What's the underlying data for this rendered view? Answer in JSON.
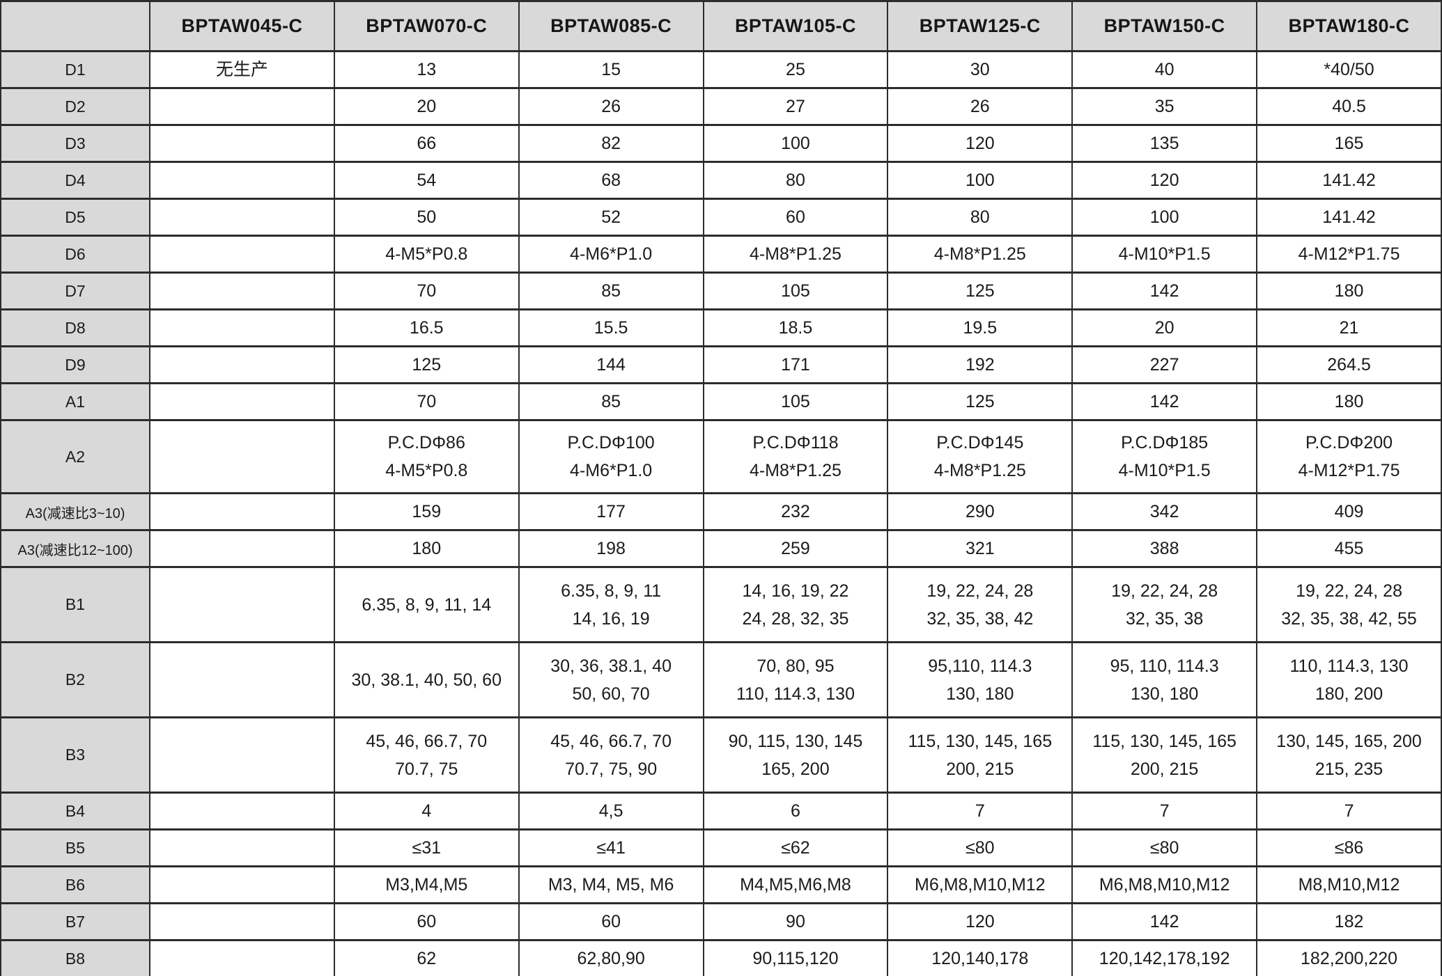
{
  "colors": {
    "header_bg": "#d9d9d9",
    "label_bg": "#d9d9d9",
    "border": "#2c2c2c",
    "text": "#1b1b1b"
  },
  "table": {
    "columns": [
      "",
      "BPTAW045-C",
      "BPTAW070-C",
      "BPTAW085-C",
      "BPTAW105-C",
      "BPTAW125-C",
      "BPTAW150-C",
      "BPTAW180-C"
    ],
    "rows": [
      {
        "label": "D1",
        "cells": [
          "无生产",
          "13",
          "15",
          "25",
          "30",
          "40",
          "*40/50"
        ]
      },
      {
        "label": "D2",
        "cells": [
          "",
          "20",
          "26",
          "27",
          "26",
          "35",
          "40.5"
        ]
      },
      {
        "label": "D3",
        "cells": [
          "",
          "66",
          "82",
          "100",
          "120",
          "135",
          "165"
        ]
      },
      {
        "label": "D4",
        "cells": [
          "",
          "54",
          "68",
          "80",
          "100",
          "120",
          "141.42"
        ]
      },
      {
        "label": "D5",
        "cells": [
          "",
          "50",
          "52",
          "60",
          "80",
          "100",
          "141.42"
        ]
      },
      {
        "label": "D6",
        "cells": [
          "",
          "4-M5*P0.8",
          "4-M6*P1.0",
          "4-M8*P1.25",
          "4-M8*P1.25",
          "4-M10*P1.5",
          "4-M12*P1.75"
        ]
      },
      {
        "label": "D7",
        "cells": [
          "",
          "70",
          "85",
          "105",
          "125",
          "142",
          "180"
        ]
      },
      {
        "label": "D8",
        "cells": [
          "",
          "16.5",
          "15.5",
          "18.5",
          "19.5",
          "20",
          "21"
        ]
      },
      {
        "label": "D9",
        "cells": [
          "",
          "125",
          "144",
          "171",
          "192",
          "227",
          "264.5"
        ]
      },
      {
        "label": "A1",
        "cells": [
          "",
          "70",
          "85",
          "105",
          "125",
          "142",
          "180"
        ]
      },
      {
        "label": "A2",
        "cells": [
          "",
          "P.C.DΦ86\n4-M5*P0.8",
          "P.C.DΦ100\n4-M6*P1.0",
          "P.C.DΦ118\n4-M8*P1.25",
          "P.C.DΦ145\n4-M8*P1.25",
          "P.C.DΦ185\n4-M10*P1.5",
          "P.C.DΦ200\n4-M12*P1.75"
        ]
      },
      {
        "label": "A3(减速比3~10)",
        "cells": [
          "",
          "159",
          "177",
          "232",
          "290",
          "342",
          "409"
        ]
      },
      {
        "label": "A3(减速比12~100)",
        "cells": [
          "",
          "180",
          "198",
          "259",
          "321",
          "388",
          "455"
        ]
      },
      {
        "label": "B1",
        "cells": [
          "",
          "6.35, 8, 9, 11, 14",
          "6.35, 8, 9, 11\n14, 16, 19",
          "14, 16, 19, 22\n24, 28, 32, 35",
          "19, 22, 24, 28\n32, 35, 38, 42",
          "19, 22, 24, 28\n32, 35, 38",
          "19, 22, 24, 28\n32, 35, 38, 42, 55"
        ]
      },
      {
        "label": "B2",
        "cells": [
          "",
          "30, 38.1, 40, 50, 60",
          "30, 36, 38.1, 40\n50, 60, 70",
          "70, 80, 95\n110, 114.3, 130",
          "95,110, 114.3\n130, 180",
          "95, 110, 114.3\n130, 180",
          "110, 114.3, 130\n180, 200"
        ]
      },
      {
        "label": "B3",
        "cells": [
          "",
          "45, 46, 66.7, 70\n70.7, 75",
          "45, 46, 66.7, 70\n70.7, 75, 90",
          "90, 115, 130, 145\n165, 200",
          "115, 130, 145, 165\n200, 215",
          "115, 130, 145, 165\n200, 215",
          "130, 145, 165, 200\n215, 235"
        ]
      },
      {
        "label": "B4",
        "cells": [
          "",
          "4",
          "4,5",
          "6",
          "7",
          "7",
          "7"
        ]
      },
      {
        "label": "B5",
        "cells": [
          "",
          "≤31",
          "≤41",
          "≤62",
          "≤80",
          "≤80",
          "≤86"
        ]
      },
      {
        "label": "B6",
        "cells": [
          "",
          "M3,M4,M5",
          "M3, M4, M5, M6",
          "M4,M5,M6,M8",
          "M6,M8,M10,M12",
          "M6,M8,M10,M12",
          "M8,M10,M12"
        ]
      },
      {
        "label": "B7",
        "cells": [
          "",
          "60",
          "60",
          "90",
          "120",
          "142",
          "182"
        ]
      },
      {
        "label": "B8",
        "cells": [
          "",
          "62",
          "62,80,90",
          "90,115,120",
          "120,140,178",
          "120,142,178,192",
          "182,200,220"
        ]
      }
    ]
  }
}
